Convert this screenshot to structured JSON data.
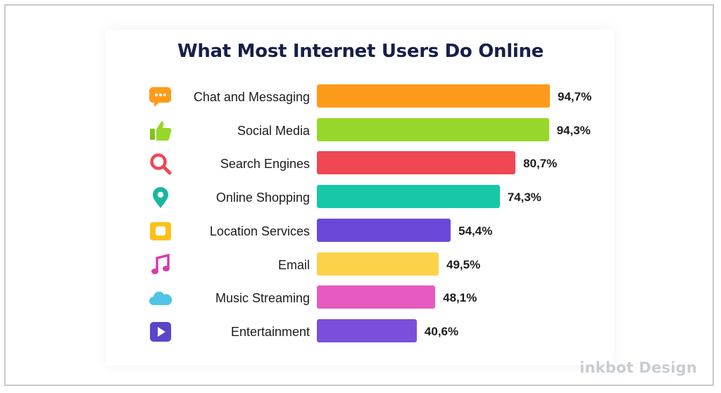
{
  "chart_data": {
    "type": "bar",
    "orientation": "horizontal",
    "title": "What Most Internet Users Do Online",
    "categories": [
      "Chat and Messaging",
      "Social Media",
      "Search Engines",
      "Online Shopping",
      "Location Services",
      "Email",
      "Music Streaming",
      "Entertainment"
    ],
    "values": [
      94.7,
      94.3,
      80.7,
      74.3,
      54.4,
      49.5,
      48.1,
      40.6
    ],
    "value_labels": [
      "94,7%",
      "94,3%",
      "80,7%",
      "74,3%",
      "54,4%",
      "49,5%",
      "48,1%",
      "40,6%"
    ],
    "colors": [
      "#ff9b1a",
      "#97d72b",
      "#ef4854",
      "#16c7a8",
      "#6a49d9",
      "#fcd24a",
      "#e75ac0",
      "#7b4fdb"
    ],
    "icons": [
      "chat-icon",
      "thumbs-up-icon",
      "search-icon",
      "location-pin-icon",
      "location-services-icon",
      "music-note-icon",
      "cloud-icon",
      "play-icon"
    ],
    "xlim": [
      0,
      100
    ],
    "grid": false,
    "legend": "none"
  },
  "watermark": "inkbot Design"
}
